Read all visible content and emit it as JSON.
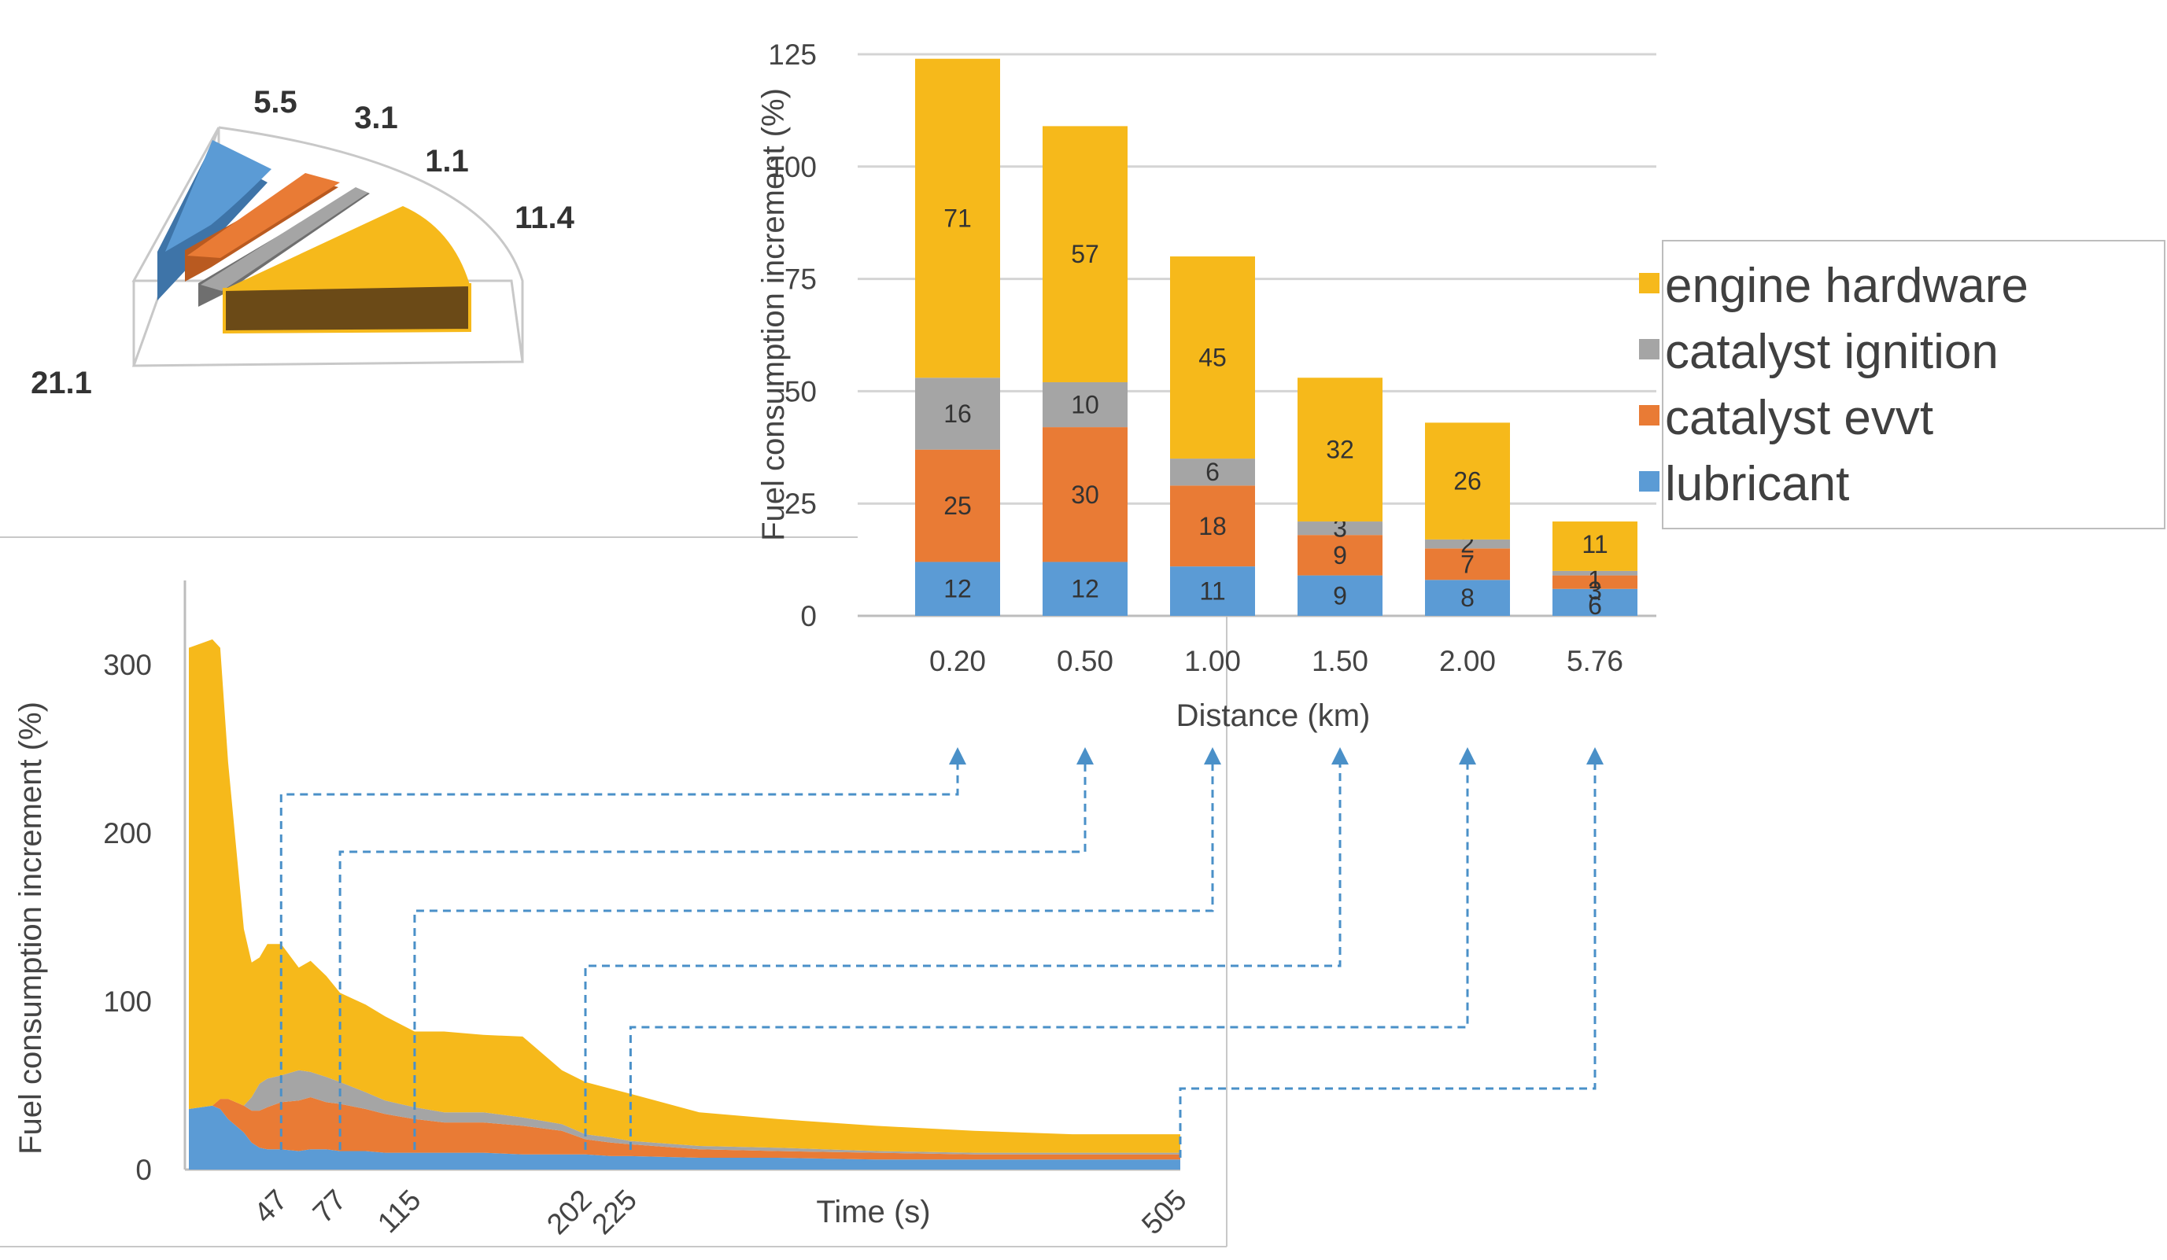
{
  "colors": {
    "engine_hardware": "#F6B91B",
    "catalyst_ignition": "#A5A5A5",
    "catalyst_evvt": "#E97B35",
    "lubricant": "#5B9BD5",
    "connector": "#4A90C8"
  },
  "chart_data": [
    {
      "type": "bar",
      "stacked": true,
      "title": "",
      "xlabel": "Distance (km)",
      "ylabel": "Fuel consumption increment (%)",
      "ylim": [
        0,
        125
      ],
      "yticks": [
        0,
        25,
        50,
        75,
        100,
        125
      ],
      "grid": true,
      "categories": [
        "0.20",
        "0.50",
        "1.00",
        "1.50",
        "2.00",
        "5.76"
      ],
      "series": [
        {
          "name": "lubricant",
          "values": [
            12,
            12,
            11,
            9,
            8,
            6
          ],
          "labels": [
            "12",
            "12",
            "11",
            "9",
            "8",
            "6"
          ]
        },
        {
          "name": "catalyst evvt",
          "values": [
            25,
            30,
            18,
            9,
            7,
            3
          ],
          "labels": [
            "25",
            "30",
            "18",
            "9",
            "7",
            "3"
          ]
        },
        {
          "name": "catalyst ignition",
          "values": [
            16,
            10,
            6,
            3,
            2,
            1
          ],
          "labels": [
            "16",
            "10",
            "6",
            "3",
            "2",
            "1"
          ]
        },
        {
          "name": "engine hardware",
          "values": [
            71,
            57,
            45,
            32,
            26,
            11
          ],
          "labels": [
            "71",
            "57",
            "45",
            "32",
            "26",
            "11"
          ]
        }
      ],
      "legend": {
        "position": "right",
        "entries": [
          "engine hardware",
          "catalyst ignition",
          "catalyst evvt",
          "lubricant"
        ]
      }
    },
    {
      "type": "area",
      "stacked": true,
      "xlabel": "Time (s)",
      "ylabel": "Fuel consumption increment (%)",
      "ylim": [
        0,
        350
      ],
      "yticks": [
        0,
        100,
        200,
        300
      ],
      "xlim": [
        0,
        505
      ],
      "xtick_labels": [
        "47",
        "77",
        "115",
        "202",
        "225",
        "505"
      ],
      "x": [
        0,
        12,
        16,
        20,
        28,
        32,
        36,
        40,
        47,
        56,
        62,
        70,
        77,
        90,
        100,
        115,
        130,
        150,
        170,
        190,
        202,
        215,
        225,
        260,
        300,
        350,
        400,
        450,
        505
      ],
      "series": [
        {
          "name": "lubricant",
          "values": [
            36,
            38,
            36,
            30,
            22,
            16,
            13,
            12,
            12,
            11,
            12,
            12,
            11,
            11,
            10,
            10,
            10,
            10,
            9,
            9,
            9,
            8,
            8,
            7,
            7,
            6,
            6,
            6,
            6
          ]
        },
        {
          "name": "catalyst evvt",
          "values": [
            0,
            0,
            6,
            12,
            16,
            19,
            22,
            25,
            28,
            30,
            31,
            28,
            28,
            25,
            23,
            20,
            18,
            18,
            17,
            14,
            9,
            8,
            7,
            5,
            4,
            4,
            3,
            3,
            3
          ]
        },
        {
          "name": "catalyst ignition",
          "values": [
            0,
            0,
            0,
            0,
            0,
            8,
            16,
            17,
            16,
            18,
            15,
            15,
            13,
            10,
            8,
            7,
            6,
            6,
            5,
            4,
            3,
            3,
            2,
            2,
            2,
            1,
            1,
            1,
            1
          ]
        },
        {
          "name": "engine hardware",
          "values": [
            274,
            277,
            268,
            200,
            105,
            80,
            75,
            80,
            78,
            61,
            66,
            60,
            53,
            52,
            50,
            45,
            48,
            46,
            48,
            32,
            31,
            29,
            28,
            20,
            17,
            15,
            13,
            11,
            11
          ]
        }
      ],
      "connectors": [
        {
          "time": 47,
          "target": "0.20"
        },
        {
          "time": 77,
          "target": "0.50"
        },
        {
          "time": 115,
          "target": "1.00"
        },
        {
          "time": 202,
          "target": "1.50"
        },
        {
          "time": 225,
          "target": "2.00"
        },
        {
          "time": 505,
          "target": "5.76"
        }
      ]
    },
    {
      "type": "pie",
      "style": "3d-sectors",
      "slices": [
        {
          "name": "lubricant",
          "label": "5.5"
        },
        {
          "name": "catalyst evvt",
          "label": "3.1"
        },
        {
          "name": "catalyst ignition",
          "label": "1.1"
        },
        {
          "name": "engine hardware",
          "label": "11.4"
        }
      ],
      "total_label": "21.1"
    }
  ]
}
